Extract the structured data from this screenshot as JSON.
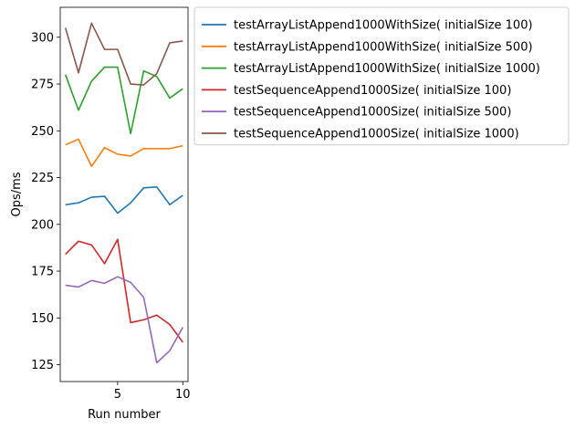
{
  "chart_data": {
    "type": "line",
    "title": "",
    "xlabel": "Run number",
    "ylabel": "Ops/ms",
    "xlim": [
      0.6,
      10.4
    ],
    "ylim": [
      116,
      316
    ],
    "xticks": [
      5,
      10
    ],
    "yticks": [
      125,
      150,
      175,
      200,
      225,
      250,
      275,
      300
    ],
    "grid": false,
    "legend_placement": "outside-right-top",
    "x": [
      1,
      2,
      3,
      4,
      5,
      6,
      7,
      8,
      9,
      10
    ],
    "series": [
      {
        "name": "testArrayListAppend1000WithSize( initialSize 100)",
        "color": "#1f77b4",
        "values": [
          210.5,
          211.5,
          214.5,
          215.0,
          206.0,
          211.5,
          219.5,
          220.0,
          210.5,
          215.5
        ]
      },
      {
        "name": "testArrayListAppend1000WithSize( initialSize 500)",
        "color": "#ff7f0e",
        "values": [
          242.5,
          245.5,
          231.0,
          241.0,
          237.5,
          236.5,
          240.5,
          240.5,
          240.5,
          242.0
        ]
      },
      {
        "name": "testArrayListAppend1000WithSize( initialSize 1000)",
        "color": "#2ca02c",
        "values": [
          280.0,
          261.0,
          276.5,
          284.0,
          284.0,
          248.5,
          282.0,
          279.0,
          267.5,
          272.5
        ]
      },
      {
        "name": "testSequenceAppend1000Size( initialSize 100)",
        "color": "#d62728",
        "values": [
          184.0,
          191.0,
          189.0,
          179.0,
          192.0,
          147.5,
          149.0,
          151.5,
          146.5,
          137.0
        ]
      },
      {
        "name": "testSequenceAppend1000Size( initialSize 500)",
        "color": "#9467bd",
        "values": [
          167.5,
          166.5,
          170.0,
          168.5,
          172.0,
          169.0,
          161.0,
          126.0,
          132.5,
          145.0
        ]
      },
      {
        "name": "testSequenceAppend1000Size( initialSize 1000)",
        "color": "#8c564b",
        "values": [
          305.0,
          281.0,
          307.5,
          293.5,
          293.5,
          275.0,
          274.5,
          280.5,
          297.0,
          298.0
        ]
      }
    ]
  }
}
